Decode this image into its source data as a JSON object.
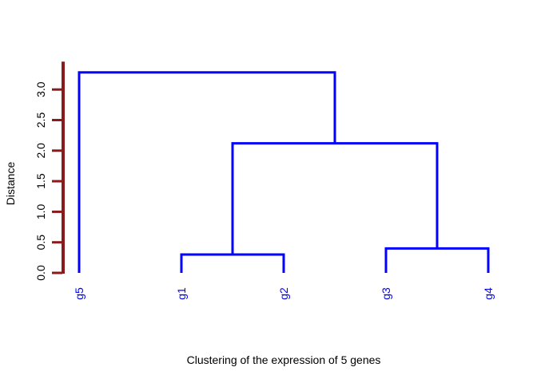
{
  "chart_data": {
    "type": "dendrogram",
    "title": "",
    "xlabel": "Clustering of the expression of 5 genes",
    "ylabel": "Distance",
    "ylim": [
      0,
      3.3
    ],
    "yticks": [
      0.0,
      0.5,
      1.0,
      1.5,
      2.0,
      2.5,
      3.0
    ],
    "ytick_labels": [
      "0.0",
      "0.5",
      "1.0",
      "1.5",
      "2.0",
      "2.5",
      "3.0"
    ],
    "leaves": [
      "g5",
      "g1",
      "g2",
      "g3",
      "g4"
    ],
    "merges": [
      {
        "left": "g1",
        "right": "g2",
        "height": 0.3
      },
      {
        "left": "g3",
        "right": "g4",
        "height": 0.4
      },
      {
        "left": "(g1,g2)",
        "right": "(g3,g4)",
        "height": 2.12
      },
      {
        "left": "g5",
        "right": "((g1,g2),(g3,g4))",
        "height": 3.28
      }
    ],
    "colors": {
      "branches": "#0000ff",
      "leaf_labels": "#0000ff",
      "axis": "#8b1a1a",
      "text": "#000000"
    }
  }
}
